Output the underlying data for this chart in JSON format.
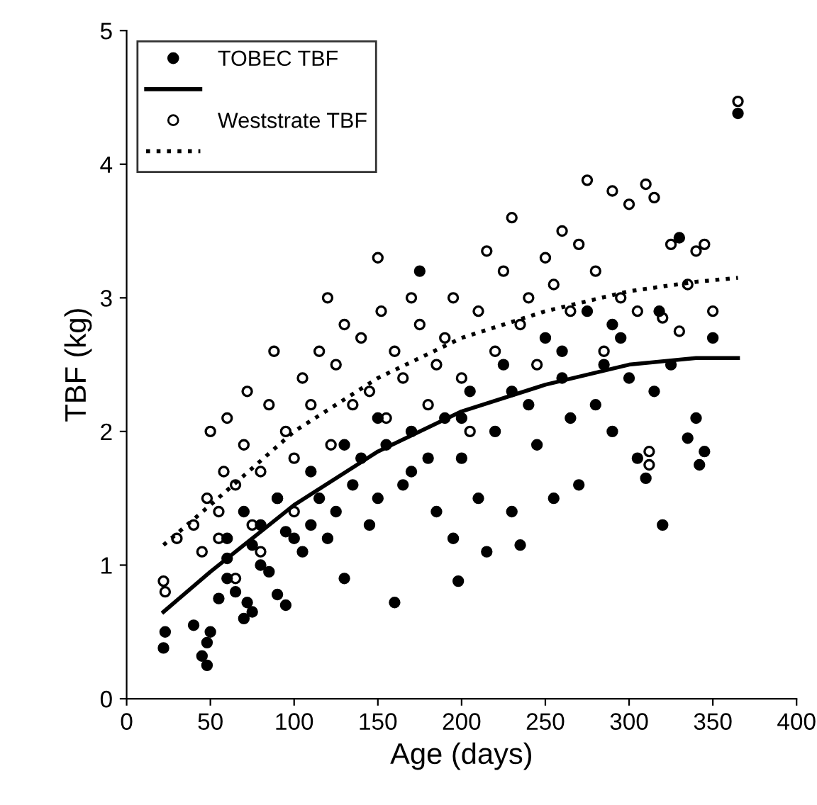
{
  "chart_data": {
    "type": "scatter",
    "xlabel": "Age (days)",
    "ylabel": "TBF (kg)",
    "xlim": [
      0,
      400
    ],
    "xticks": [
      0,
      50,
      100,
      150,
      200,
      250,
      300,
      350,
      400
    ],
    "ylim": [
      0,
      5
    ],
    "yticks": [
      0,
      1,
      2,
      3,
      4,
      5
    ],
    "grid": false,
    "legend": "top left",
    "series": [
      {
        "name": "TOBEC TBF",
        "type": "scatter",
        "marker": "circle",
        "color": "#000000",
        "x": [
          22,
          23,
          40,
          45,
          48,
          48,
          50,
          55,
          60,
          65,
          70,
          72,
          75,
          80,
          85,
          90,
          95,
          100,
          105,
          110,
          115,
          120,
          125,
          130,
          135,
          140,
          145,
          150,
          155,
          160,
          165,
          170,
          175,
          180,
          185,
          190,
          195,
          198,
          200,
          205,
          210,
          215,
          220,
          225,
          230,
          235,
          240,
          245,
          250,
          255,
          260,
          265,
          270,
          275,
          280,
          285,
          290,
          295,
          300,
          305,
          310,
          315,
          318,
          320,
          325,
          330,
          335,
          340,
          342,
          345,
          350,
          365,
          60,
          70,
          80,
          90,
          110,
          130,
          150,
          170,
          200,
          230,
          260,
          290,
          60,
          75,
          95
        ],
        "values": [
          0.38,
          0.5,
          0.55,
          0.32,
          0.25,
          0.42,
          0.5,
          0.75,
          0.9,
          0.8,
          0.6,
          0.72,
          0.65,
          1.0,
          0.95,
          0.78,
          0.7,
          1.2,
          1.1,
          1.3,
          1.5,
          1.2,
          1.4,
          0.9,
          1.6,
          1.8,
          1.3,
          1.5,
          1.9,
          0.72,
          1.6,
          2.0,
          3.2,
          1.8,
          1.4,
          2.1,
          1.2,
          0.88,
          1.8,
          2.3,
          1.5,
          1.1,
          2.0,
          2.5,
          1.4,
          1.15,
          2.2,
          1.9,
          2.7,
          1.5,
          2.4,
          2.1,
          1.6,
          2.9,
          2.2,
          2.5,
          2.0,
          2.7,
          2.4,
          1.8,
          1.65,
          2.3,
          2.9,
          1.3,
          2.5,
          3.45,
          1.95,
          2.1,
          1.75,
          1.85,
          2.7,
          4.38,
          1.2,
          1.4,
          1.3,
          1.5,
          1.7,
          1.9,
          2.1,
          1.7,
          2.1,
          2.3,
          2.6,
          2.8,
          1.05,
          1.15,
          1.25
        ]
      },
      {
        "type": "line",
        "line_style": "solid",
        "color": "#000000",
        "x": [
          22,
          50,
          80,
          100,
          150,
          200,
          250,
          300,
          340,
          365
        ],
        "values": [
          0.65,
          0.95,
          1.25,
          1.45,
          1.85,
          2.15,
          2.35,
          2.5,
          2.55,
          2.55
        ]
      },
      {
        "name": "Weststrate TBF",
        "type": "scatter",
        "marker": "open circle",
        "color": "#000000",
        "x": [
          22,
          23,
          30,
          40,
          45,
          48,
          50,
          55,
          58,
          60,
          65,
          70,
          72,
          75,
          80,
          85,
          88,
          90,
          95,
          100,
          105,
          110,
          115,
          120,
          122,
          125,
          130,
          135,
          140,
          145,
          150,
          152,
          155,
          160,
          165,
          170,
          175,
          180,
          185,
          190,
          195,
          200,
          205,
          210,
          215,
          220,
          225,
          230,
          235,
          240,
          245,
          250,
          255,
          260,
          265,
          270,
          275,
          280,
          285,
          290,
          295,
          300,
          305,
          310,
          312,
          315,
          320,
          325,
          330,
          335,
          340,
          345,
          350,
          365,
          312,
          65,
          80,
          100,
          55
        ],
        "values": [
          0.88,
          0.8,
          1.2,
          1.3,
          1.1,
          1.5,
          2.0,
          1.4,
          1.7,
          2.1,
          1.6,
          1.9,
          2.3,
          1.3,
          1.7,
          2.2,
          2.6,
          1.5,
          2.0,
          1.8,
          2.4,
          2.2,
          2.6,
          3.0,
          1.9,
          2.5,
          2.8,
          2.2,
          2.7,
          2.3,
          3.3,
          2.9,
          2.1,
          2.6,
          2.4,
          3.0,
          2.8,
          2.2,
          2.5,
          2.7,
          3.0,
          2.4,
          2.0,
          2.9,
          3.35,
          2.6,
          3.2,
          3.6,
          2.8,
          3.0,
          2.5,
          3.3,
          3.1,
          3.5,
          2.9,
          3.4,
          3.88,
          3.2,
          2.6,
          3.8,
          3.0,
          3.7,
          2.9,
          3.85,
          1.85,
          3.75,
          2.85,
          3.4,
          2.75,
          3.1,
          3.35,
          3.4,
          2.9,
          4.47,
          1.75,
          0.9,
          1.1,
          1.4,
          1.2
        ]
      },
      {
        "type": "line",
        "line_style": "dotted",
        "color": "#000000",
        "x": [
          22,
          50,
          100,
          150,
          200,
          250,
          300,
          340,
          365
        ],
        "values": [
          1.15,
          1.45,
          2.0,
          2.4,
          2.7,
          2.9,
          3.05,
          3.12,
          3.15
        ]
      }
    ]
  }
}
